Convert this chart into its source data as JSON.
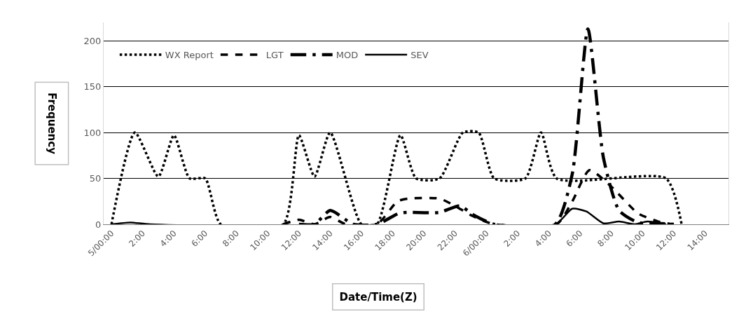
{
  "chart_data": {
    "type": "line",
    "xlabel": "Date/Time(Z)",
    "ylabel": "Frequency",
    "xlim": [
      "--01-04T23:30",
      "--01-06T15:30"
    ],
    "xticks": [
      {
        "value": "--01-05T00:00",
        "label": "5/00:00"
      },
      {
        "value": "--01-05T02:00",
        "label": "2:00"
      },
      {
        "value": "--01-05T04:00",
        "label": "4:00"
      },
      {
        "value": "--01-05T06:00",
        "label": "6:00"
      },
      {
        "value": "--01-05T08:00",
        "label": "8:00"
      },
      {
        "value": "--01-05T10:00",
        "label": "10:00"
      },
      {
        "value": "--01-05T12:00",
        "label": "12:00"
      },
      {
        "value": "--01-05T14:00",
        "label": "14:00"
      },
      {
        "value": "--01-05T16:00",
        "label": "16:00"
      },
      {
        "value": "--01-05T18:00",
        "label": "18:00"
      },
      {
        "value": "--01-05T20:00",
        "label": "20:00"
      },
      {
        "value": "--01-05T22:00",
        "label": "22:00"
      },
      {
        "value": "--01-06T00:00",
        "label": "6/00:00"
      },
      {
        "value": "--01-06T02:00",
        "label": "2:00"
      },
      {
        "value": "--01-06T04:00",
        "label": "4:00"
      },
      {
        "value": "--01-06T06:00",
        "label": "6:00"
      },
      {
        "value": "--01-06T08:00",
        "label": "8:00"
      },
      {
        "value": "--01-06T10:00",
        "label": "10:00"
      },
      {
        "value": "--01-06T12:00",
        "label": "12:00"
      },
      {
        "value": "--01-06T14:00",
        "label": "14:00"
      }
    ],
    "ylim": [
      0,
      220
    ],
    "yticks": [
      0,
      50,
      100,
      150,
      200
    ],
    "grid": "y",
    "legend": "top left",
    "marker": "none",
    "series": [
      {
        "name": "WX Report",
        "color": "#000000",
        "line_style": "dotted",
        "x": [
          "--01-05T00:00",
          "--01-05T01:30",
          "--01-05T03:00",
          "--01-05T04:00",
          "--01-05T05:00",
          "--01-05T06:00",
          "--01-05T07:00",
          "--01-05T11:00",
          "--01-05T12:00",
          "--01-05T13:00",
          "--01-05T14:00",
          "--01-05T16:00",
          "--01-05T17:00",
          "--01-05T18:30",
          "--01-05T19:30",
          "--01-05T21:00",
          "--01-05T22:30",
          "--01-05T23:30",
          "--01-06T00:30",
          "--01-06T02:30",
          "--01-06T03:30",
          "--01-06T04:30",
          "--01-06T11:30",
          "--01-06T12:30"
        ],
        "values": [
          0,
          100,
          52,
          97,
          50,
          50,
          0,
          0,
          97,
          52,
          100,
          0,
          0,
          97,
          50,
          50,
          100,
          100,
          50,
          50,
          100,
          50,
          50,
          0
        ]
      },
      {
        "name": "LGT",
        "color": "#000000",
        "line_style": "dashed",
        "x": [
          "--01-05T11:00",
          "--01-05T12:00",
          "--01-05T13:00",
          "--01-05T14:00",
          "--01-05T15:00",
          "--01-05T17:00",
          "--01-05T18:18",
          "--01-05T19:00",
          "--01-05T21:00",
          "--01-05T22:00",
          "--01-05T23:00",
          "--01-06T00:30",
          "--01-06T04:30",
          "--01-06T05:30",
          "--01-06T06:36",
          "--01-06T08:00",
          "--01-06T09:42",
          "--01-06T11:00",
          "--01-06T12:00"
        ],
        "values": [
          0,
          5,
          0,
          8,
          0,
          0,
          25,
          28,
          28,
          20,
          10,
          0,
          0,
          25,
          59,
          41,
          12,
          3,
          0
        ]
      },
      {
        "name": "MOD",
        "color": "#000000",
        "line_style": "dashdot",
        "x": [
          "--01-05T12:00",
          "--01-05T13:00",
          "--01-05T14:00",
          "--01-05T15:30",
          "--01-05T17:00",
          "--01-05T18:24",
          "--01-05T19:00",
          "--01-05T21:00",
          "--01-05T22:18",
          "--01-05T23:12",
          "--01-06T00:30",
          "--01-06T04:24",
          "--01-06T05:30",
          "--01-06T06:30",
          "--01-06T07:30",
          "--01-06T08:30",
          "--01-06T09:42",
          "--01-06T11:00",
          "--01-06T12:00"
        ],
        "values": [
          0,
          0,
          15,
          0,
          0,
          12,
          13,
          13,
          20,
          10,
          0,
          0,
          55,
          213,
          72,
          15,
          2,
          1,
          0
        ]
      },
      {
        "name": "SEV",
        "color": "#000000",
        "line_style": "solid",
        "x": [
          "--01-05T00:00",
          "--01-05T01:12",
          "--01-05T02:30",
          "--01-06T04:24",
          "--01-06T05:30",
          "--01-06T06:24",
          "--01-06T07:30",
          "--01-06T08:30",
          "--01-06T09:30",
          "--01-06T10:18",
          "--01-06T11:30"
        ],
        "values": [
          0,
          2,
          0,
          0,
          17,
          14,
          1,
          3,
          0,
          3,
          0
        ]
      }
    ]
  }
}
